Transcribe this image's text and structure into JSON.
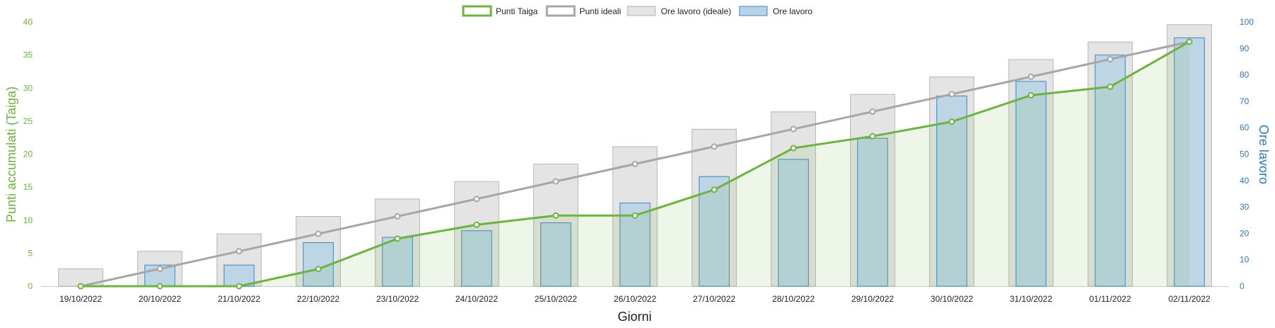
{
  "chart_data": {
    "type": "bar",
    "xlabel": "Giorni",
    "ylabel_left": "Punti accumulati (Taiga)",
    "ylabel_right": "Ore lavoro",
    "ylim_left": [
      0,
      40
    ],
    "ylim_right": [
      0,
      100
    ],
    "yticks_left": [
      0,
      5,
      10,
      15,
      20,
      25,
      30,
      35,
      40
    ],
    "yticks_right": [
      0,
      10,
      20,
      30,
      40,
      50,
      60,
      70,
      80,
      90,
      100
    ],
    "grid": false,
    "legend_position": "top-center",
    "categories": [
      "19/10/2022",
      "20/10/2022",
      "21/10/2022",
      "22/10/2022",
      "23/10/2022",
      "24/10/2022",
      "25/10/2022",
      "26/10/2022",
      "27/10/2022",
      "28/10/2022",
      "29/10/2022",
      "30/10/2022",
      "31/10/2022",
      "01/11/2022",
      "02/11/2022"
    ],
    "series": [
      {
        "name": "Punti Taiga",
        "kind": "line",
        "axis": "left",
        "color": "#6db33f",
        "values": [
          0,
          0,
          0,
          2.6,
          7.2,
          9.3,
          10.7,
          10.7,
          14.6,
          20.9,
          22.7,
          24.9,
          28.9,
          30.2,
          37.0
        ]
      },
      {
        "name": "Punti ideali",
        "kind": "line",
        "axis": "left",
        "color": "#a6a6a6",
        "values": [
          0,
          2.64,
          5.29,
          7.93,
          10.57,
          13.21,
          15.86,
          18.5,
          21.14,
          23.79,
          26.43,
          29.07,
          31.71,
          34.36,
          37.0
        ]
      },
      {
        "name": "Ore lavoro (ideale)",
        "kind": "bar",
        "axis": "right",
        "color": "#e4e4e4",
        "values": [
          6.6,
          13.2,
          19.8,
          26.4,
          33.0,
          39.6,
          46.2,
          52.8,
          59.4,
          66.0,
          72.6,
          79.2,
          85.8,
          92.4,
          99.0
        ]
      },
      {
        "name": "Ore lavoro",
        "kind": "bar",
        "axis": "right",
        "color": "#b9d3e6",
        "values": [
          0,
          8,
          8,
          16.5,
          18.5,
          21,
          24,
          31.5,
          41.5,
          48,
          56,
          72,
          77.5,
          87.5,
          94
        ]
      }
    ]
  }
}
